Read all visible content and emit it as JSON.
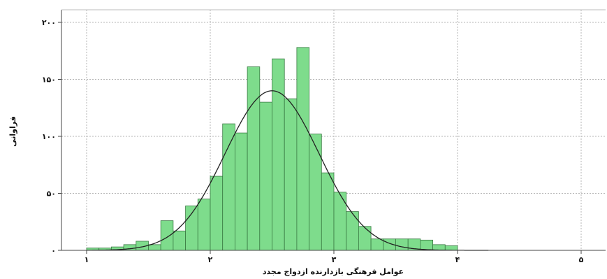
{
  "chart_data": {
    "type": "bar",
    "title": "",
    "xlabel": "عوامل فرهنگی بازدارنده ازدواج مجدد",
    "ylabel": "فراوانی",
    "xlim": [
      0.9,
      5.1
    ],
    "ylim": [
      0,
      210
    ],
    "x_ticks": [
      {
        "value": 1,
        "label": "۱"
      },
      {
        "value": 2,
        "label": "۲"
      },
      {
        "value": 3,
        "label": "۳"
      },
      {
        "value": 4,
        "label": "۴"
      },
      {
        "value": 5,
        "label": "۵"
      }
    ],
    "y_ticks": [
      {
        "value": 0,
        "label": "۰"
      },
      {
        "value": 50,
        "label": "۵۰"
      },
      {
        "value": 100,
        "label": "۱۰۰"
      },
      {
        "value": 150,
        "label": "۱۵۰"
      },
      {
        "value": 200,
        "label": "۲۰۰"
      }
    ],
    "grid": true,
    "bin_width": 0.1,
    "bins": [
      {
        "x": 1.05,
        "count": 2
      },
      {
        "x": 1.15,
        "count": 2
      },
      {
        "x": 1.25,
        "count": 3
      },
      {
        "x": 1.35,
        "count": 5
      },
      {
        "x": 1.45,
        "count": 8
      },
      {
        "x": 1.55,
        "count": 5
      },
      {
        "x": 1.65,
        "count": 26
      },
      {
        "x": 1.75,
        "count": 17
      },
      {
        "x": 1.85,
        "count": 39
      },
      {
        "x": 1.95,
        "count": 45
      },
      {
        "x": 2.05,
        "count": 65
      },
      {
        "x": 2.15,
        "count": 111
      },
      {
        "x": 2.25,
        "count": 103
      },
      {
        "x": 2.35,
        "count": 161
      },
      {
        "x": 2.45,
        "count": 130
      },
      {
        "x": 2.55,
        "count": 168
      },
      {
        "x": 2.65,
        "count": 133
      },
      {
        "x": 2.75,
        "count": 178
      },
      {
        "x": 2.85,
        "count": 102
      },
      {
        "x": 2.95,
        "count": 68
      },
      {
        "x": 3.05,
        "count": 51
      },
      {
        "x": 3.15,
        "count": 34
      },
      {
        "x": 3.25,
        "count": 21
      },
      {
        "x": 3.35,
        "count": 10
      },
      {
        "x": 3.45,
        "count": 10
      },
      {
        "x": 3.55,
        "count": 10
      },
      {
        "x": 3.65,
        "count": 10
      },
      {
        "x": 3.75,
        "count": 9
      },
      {
        "x": 3.85,
        "count": 5
      },
      {
        "x": 3.95,
        "count": 4
      }
    ],
    "normal_curve": {
      "mean": 2.5,
      "sd": 0.38,
      "peak": 140
    },
    "colors": {
      "bar_fill": "#7edc8c",
      "bar_stroke": "#3a7a43",
      "curve": "#222222",
      "grid": "#b5b5b5",
      "axis": "#444444"
    }
  }
}
